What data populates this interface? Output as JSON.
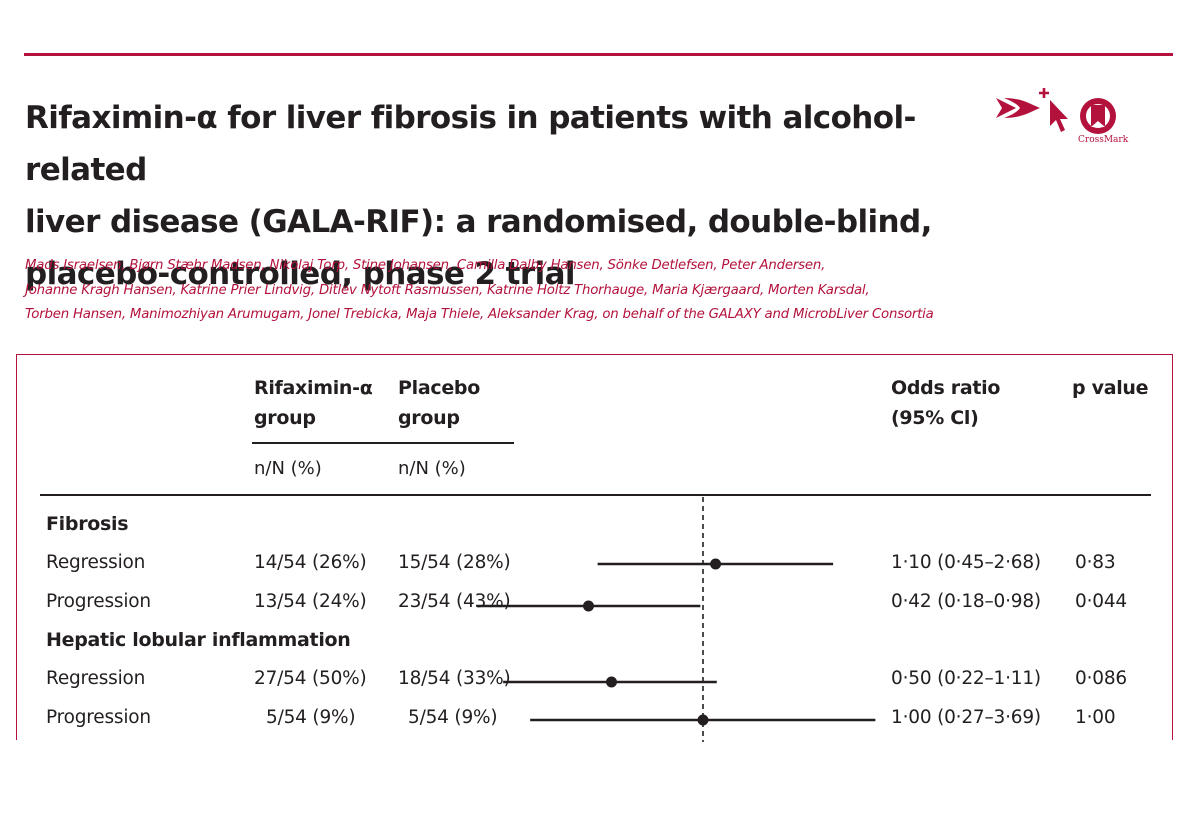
{
  "article": {
    "title_lines": [
      "Rifaximin-α for liver fibrosis in patients with alcohol-related",
      "liver disease (GALA-RIF): a randomised, double-blind,",
      "placebo-controlled, phase 2 trial"
    ],
    "author_lines": [
      "Mads Israelsen, Bjørn Stæhr Madsen, Nikolaj Torp, Stine Johansen, Camilla Dalby Hansen, Sönke Detlefsen, Peter Andersen,",
      "Johanne Kragh Hansen, Katrine Prier Lindvig, Ditlev Nytoft Rasmussen, Katrine Holtz Thorhauge, Maria Kjærgaard, Morten Karsdal,",
      "Torben Hansen, Manimozhiyan Arumugam, Jonel Trebicka, Maja Thiele, Aleksander Krag, on behalf of the GALAXY and MicrobLiver Consortia"
    ],
    "crossmark_label": "CrossMark",
    "icons": [
      "open-access-icon",
      "cursor-icon",
      "crossmark-icon"
    ],
    "accent_color": "#b3123c"
  },
  "table": {
    "headers": {
      "rifaximin_line1": "Rifaximin-α",
      "rifaximin_line2": "group",
      "placebo_line1": "Placebo",
      "placebo_line2": "group",
      "or_line1": "Odds ratio",
      "or_line2": "(95% Cl)",
      "p_value": "p value",
      "rifaximin_units": "n/N (%)",
      "placebo_units": "n/N (%)"
    },
    "sections": [
      {
        "label": "Fibrosis",
        "rows": [
          {
            "label": "Regression",
            "rifaximin": "14/54 (26%)",
            "placebo": "15/54 (28%)",
            "or_text": "1·10 (0·45–2·68)",
            "p": "0·83"
          },
          {
            "label": "Progression",
            "rifaximin": "13/54 (24%)",
            "placebo": "23/54 (43%)",
            "or_text": "0·42 (0·18–0·98)",
            "p": "0·044"
          }
        ]
      },
      {
        "label": "Hepatic lobular inflammation",
        "rows": [
          {
            "label": "Regression",
            "rifaximin": "27/54 (50%)",
            "placebo": "18/54 (33%)",
            "or_text": "0·50 (0·22–1·11)",
            "p": "0·086"
          },
          {
            "label": "Progression",
            "rifaximin": "5/54 (9%)",
            "placebo": "5/54 (9%)",
            "or_text": "1·00 (0·27–3·69)",
            "p": "1·00"
          }
        ]
      }
    ]
  },
  "chart_data": {
    "type": "forest",
    "reference_line": 1.0,
    "scale": "log",
    "xlim": [
      0.15,
      4.0
    ],
    "series": [
      {
        "name": "Fibrosis – Regression",
        "or": 1.1,
        "lo": 0.45,
        "hi": 2.68
      },
      {
        "name": "Fibrosis – Progression",
        "or": 0.42,
        "lo": 0.18,
        "hi": 0.98
      },
      {
        "name": "Hepatic lobular inflammation – Regression",
        "or": 0.5,
        "lo": 0.22,
        "hi": 1.11
      },
      {
        "name": "Hepatic lobular inflammation – Progression",
        "or": 1.0,
        "lo": 0.27,
        "hi": 3.69
      }
    ]
  }
}
